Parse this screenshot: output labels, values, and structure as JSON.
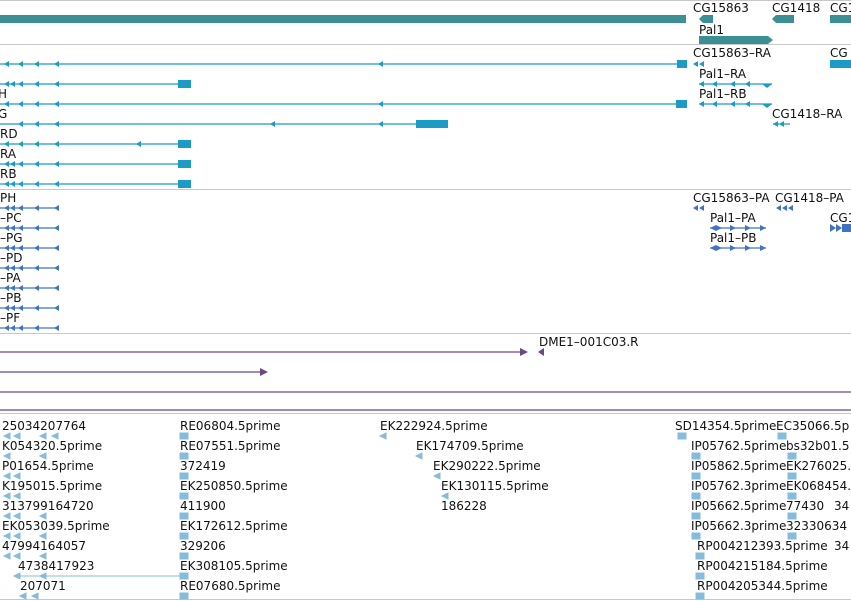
{
  "colors": {
    "gene": "#3d8f96",
    "transcript": "#1b9bc6",
    "protein": "#3f74c2",
    "est_alignment": "#6b478c",
    "est_feature": "#86bbdc",
    "divider": "#c8c8c8",
    "label": "#111111"
  },
  "tracks": {
    "genes": {
      "name": "gene-track",
      "labels": [
        {
          "id": "gene-cg15863",
          "text": "CG15863"
        },
        {
          "id": "gene-cg1418",
          "text": "CG1418"
        },
        {
          "id": "gene-cg-partial",
          "text": "CG1"
        },
        {
          "id": "gene-pal1",
          "text": "Pal1"
        }
      ]
    },
    "transcripts": {
      "name": "transcript-track",
      "labels": [
        {
          "id": "tx-cg15863-ra",
          "text": "CG15863–RA"
        },
        {
          "id": "tx-cg-partial",
          "text": "CG"
        },
        {
          "id": "tx-pal1-ra",
          "text": "Pal1–RA"
        },
        {
          "id": "tx-pal1-rb",
          "text": "Pal1–RB"
        },
        {
          "id": "tx-cg1418-ra",
          "text": "CG1418–RA"
        },
        {
          "id": "tx-left-h",
          "text": "H"
        },
        {
          "id": "tx-left-g",
          "text": "G"
        },
        {
          "id": "tx-left-rd",
          "text": "RD"
        },
        {
          "id": "tx-left-ra",
          "text": "RA"
        },
        {
          "id": "tx-left-rb",
          "text": "RB"
        }
      ]
    },
    "proteins": {
      "name": "protein-track",
      "labels": [
        {
          "id": "pr-left-ph",
          "text": "PH"
        },
        {
          "id": "pr-left-pc",
          "text": "–PC"
        },
        {
          "id": "pr-left-pg",
          "text": "–PG"
        },
        {
          "id": "pr-left-pd",
          "text": "–PD"
        },
        {
          "id": "pr-left-pa",
          "text": "–PA"
        },
        {
          "id": "pr-left-pb",
          "text": "–PB"
        },
        {
          "id": "pr-left-pf",
          "text": "–PF"
        },
        {
          "id": "pr-cg15863-pa",
          "text": "CG15863–PA"
        },
        {
          "id": "pr-cg1418-pa",
          "text": "CG1418–PA"
        },
        {
          "id": "pr-cg-partial",
          "text": "CG1"
        },
        {
          "id": "pr-pal1-pa",
          "text": "Pal1–PA"
        },
        {
          "id": "pr-pal1-pb",
          "text": "Pal1–PB"
        }
      ]
    },
    "est_alignments": {
      "name": "est-alignment-track",
      "labels": [
        {
          "id": "est-dme1-001c03",
          "text": "DME1–001C03.R"
        }
      ]
    },
    "est_features": {
      "name": "est-feature-track",
      "labels": [
        {
          "id": "c1-r1",
          "text": "25034207764"
        },
        {
          "id": "c1-r2",
          "text": "K054320.5prime"
        },
        {
          "id": "c1-r3",
          "text": "P01654.5prime"
        },
        {
          "id": "c1-r4",
          "text": "K195015.5prime"
        },
        {
          "id": "c1-r5",
          "text": "313799164720"
        },
        {
          "id": "c1-r6",
          "text": "EK053039.5prime"
        },
        {
          "id": "c1-r7",
          "text": "47994164057"
        },
        {
          "id": "c1-r8",
          "text": "4738417923"
        },
        {
          "id": "c1-r9",
          "text": "207071"
        },
        {
          "id": "c2-r1",
          "text": "RE06804.5prime"
        },
        {
          "id": "c2-r2",
          "text": "RE07551.5prime"
        },
        {
          "id": "c2-r3",
          "text": "372419"
        },
        {
          "id": "c2-r4",
          "text": "EK250850.5prime"
        },
        {
          "id": "c2-r5",
          "text": "411900"
        },
        {
          "id": "c2-r6",
          "text": "EK172612.5prime"
        },
        {
          "id": "c2-r7",
          "text": "329206"
        },
        {
          "id": "c2-r8",
          "text": "EK308105.5prime"
        },
        {
          "id": "c2-r9",
          "text": "RE07680.5prime"
        },
        {
          "id": "c3-r1",
          "text": "EK222924.5prime"
        },
        {
          "id": "c3-r2",
          "text": "EK174709.5prime"
        },
        {
          "id": "c3-r3",
          "text": "EK290222.5prime"
        },
        {
          "id": "c3-r4",
          "text": "EK130115.5prime"
        },
        {
          "id": "c3-r5",
          "text": "186228"
        },
        {
          "id": "c4-r1",
          "text": "SD14354.5prime"
        },
        {
          "id": "c4-r2",
          "text": "IP05762.5prime"
        },
        {
          "id": "c4-r3",
          "text": "IP05862.5prime"
        },
        {
          "id": "c4-r4",
          "text": "IP05762.3prime"
        },
        {
          "id": "c4-r5",
          "text": "IP05662.5prime"
        },
        {
          "id": "c4-r6",
          "text": "IP05662.3prime"
        },
        {
          "id": "c4-r7",
          "text": "RP004212393.5prime"
        },
        {
          "id": "c4-r8",
          "text": "RP004215184.5prime"
        },
        {
          "id": "c4-r9",
          "text": "RP004205344.5prime"
        },
        {
          "id": "c5-r1",
          "text": "EC35066.5p"
        },
        {
          "id": "c5-r2",
          "text": "bs32b01.5"
        },
        {
          "id": "c5-r3",
          "text": "EK276025."
        },
        {
          "id": "c5-r4",
          "text": "EK068454."
        },
        {
          "id": "c5-r5",
          "text": "77430"
        },
        {
          "id": "c5-r5b",
          "text": "34"
        },
        {
          "id": "c5-r6",
          "text": "32330634"
        },
        {
          "id": "c5-r7",
          "text": "34"
        }
      ]
    }
  }
}
